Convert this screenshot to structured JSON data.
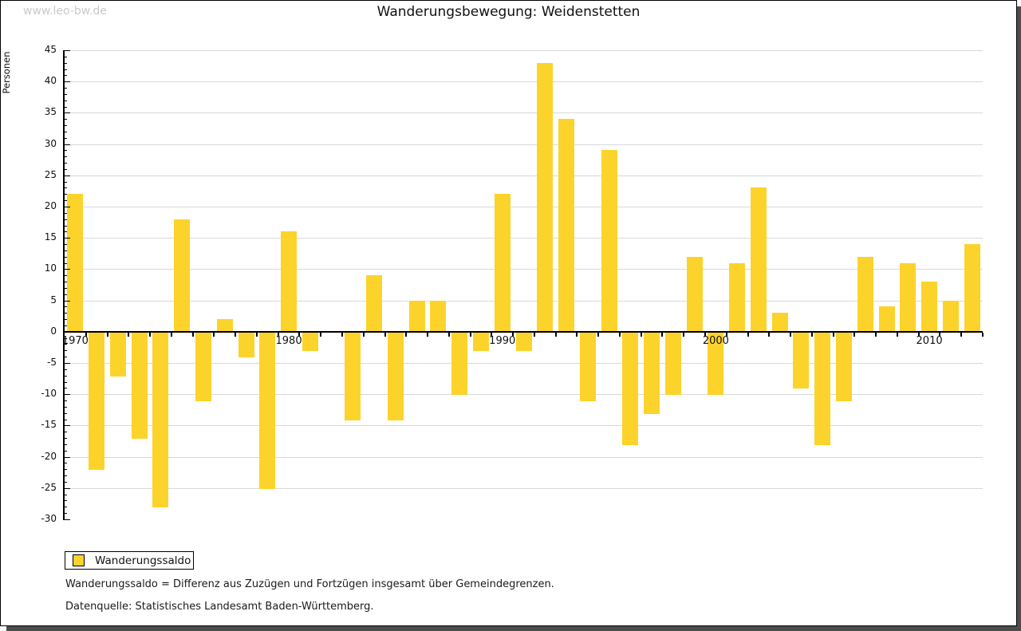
{
  "watermark": "www.leo-bw.de",
  "title": "Wanderungsbewegung: Weidenstetten",
  "legend": {
    "label": "Wanderungssaldo"
  },
  "footnotes": {
    "definition": "Wanderungssaldo = Differenz aus Zuzügen und Fortzügen insgesamt über Gemeindegrenzen.",
    "source": "Datenquelle: Statistisches Landesamt Baden-Württemberg."
  },
  "chart_data": {
    "type": "bar",
    "title": "Wanderungsbewegung: Weidenstetten",
    "ylabel": "Personen",
    "xlabel": "",
    "series_name": "Wanderungssaldo",
    "categories": [
      1970,
      1971,
      1972,
      1973,
      1974,
      1975,
      1976,
      1977,
      1978,
      1979,
      1980,
      1981,
      1982,
      1983,
      1984,
      1985,
      1986,
      1987,
      1988,
      1989,
      1990,
      1991,
      1992,
      1993,
      1994,
      1995,
      1996,
      1997,
      1998,
      1999,
      2000,
      2001,
      2002,
      2003,
      2004,
      2005,
      2006,
      2007,
      2008,
      2009,
      2010,
      2011,
      2012
    ],
    "values": [
      22,
      -22,
      -7,
      -17,
      -28,
      18,
      -11,
      2,
      -4,
      -25,
      16,
      -3,
      0,
      -14,
      9,
      -14,
      5,
      5,
      -10,
      -3,
      22,
      -3,
      43,
      34,
      -11,
      29,
      -18,
      -13,
      -10,
      12,
      -10,
      11,
      23,
      3,
      -9,
      -18,
      -11,
      12,
      4,
      11,
      8,
      5,
      14
    ],
    "ylim": [
      -30,
      45
    ],
    "ytick_major_step": 5,
    "ytick_minor_step": 1,
    "xtick_labels": [
      1970,
      1980,
      1990,
      2000,
      2010
    ],
    "grid": "horizontal-major",
    "legend_position": "bottom-left",
    "colors": {
      "bar": "#fcd32b",
      "grid": "#d9d9d9",
      "axis": "#000000",
      "watermark": "#c9c9c9",
      "frame_shadow": "#4d4d4d"
    }
  }
}
